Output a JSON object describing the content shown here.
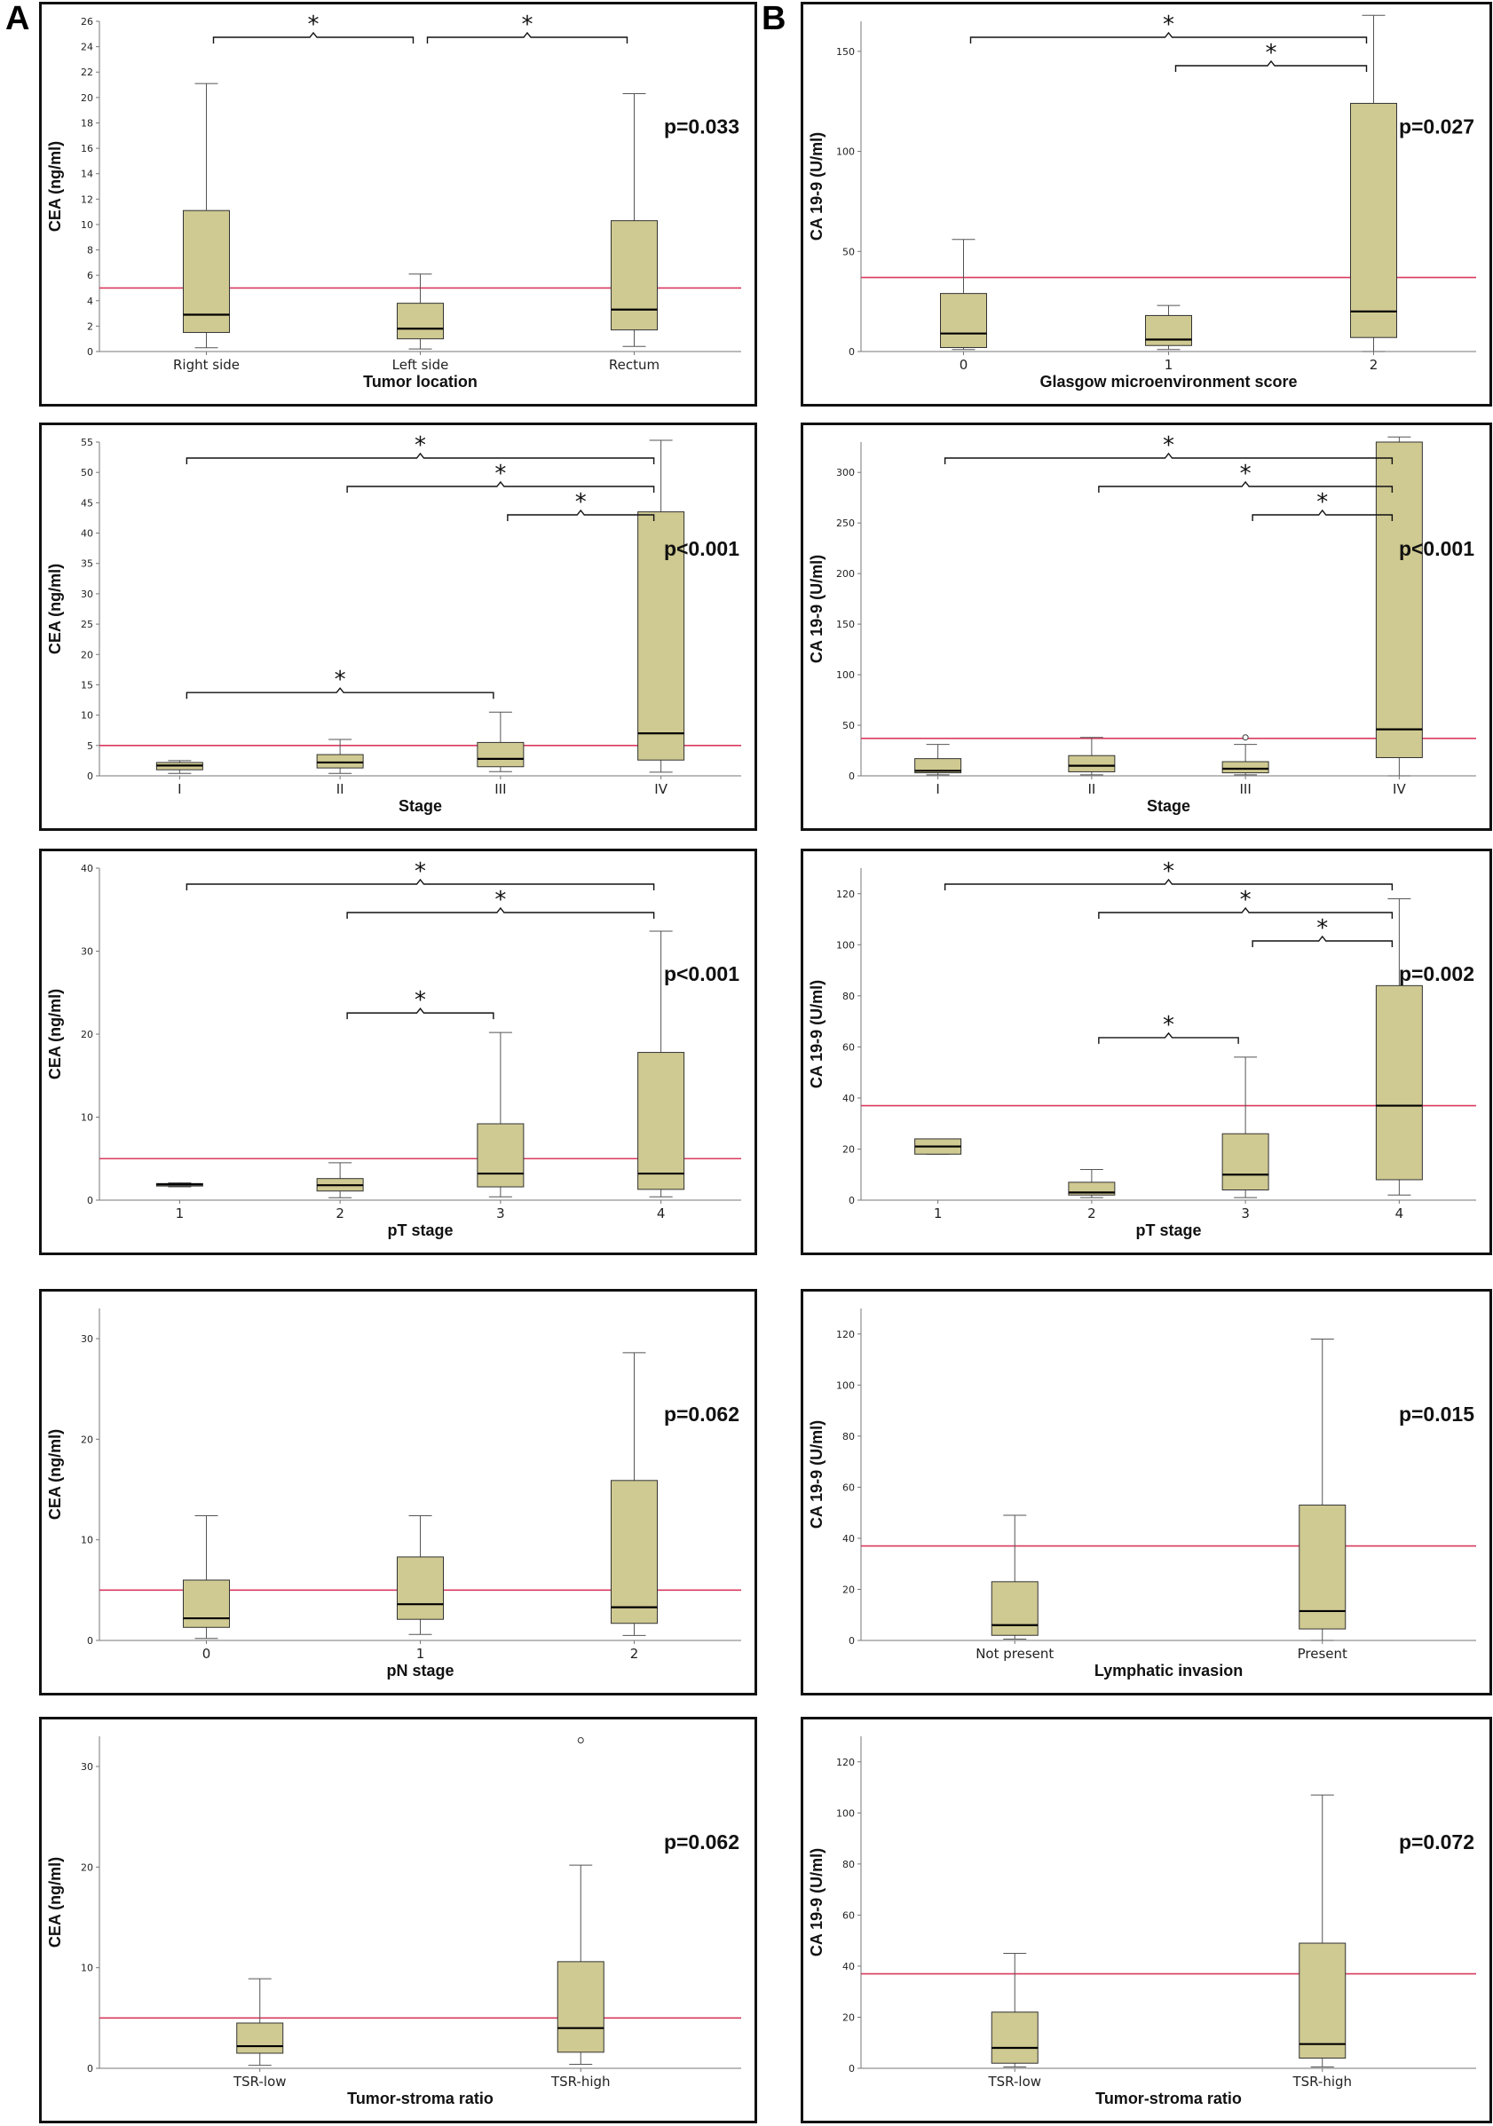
{
  "figure": {
    "label_a": "A",
    "label_b": "B"
  },
  "style": {
    "box_fill": "#cfc992",
    "ref_line": "#d93a5e",
    "frame": "#111111"
  },
  "chart_data": [
    {
      "panel": "A1",
      "type": "box",
      "ylabel": "CEA (ng/ml)",
      "xlabel": "Tumor location",
      "ylim": [
        0,
        26
      ],
      "yticks": [
        0,
        2,
        4,
        6,
        8,
        10,
        12,
        14,
        16,
        18,
        20,
        22,
        24,
        26
      ],
      "categories": [
        "Right side",
        "Left side",
        "Rectum"
      ],
      "boxes": [
        {
          "min": 0.3,
          "q1": 1.5,
          "median": 2.9,
          "q3": 11.1,
          "max": 21.1
        },
        {
          "min": 0.2,
          "q1": 1.0,
          "median": 1.8,
          "q3": 3.8,
          "max": 6.1
        },
        {
          "min": 0.4,
          "q1": 1.7,
          "median": 3.3,
          "q3": 10.3,
          "max": 20.3
        }
      ],
      "outliers": [],
      "reference_line": 5,
      "p_value": "p=0.033",
      "brackets": [
        {
          "from": 0,
          "to": 1,
          "label": "*",
          "level": 0
        },
        {
          "from": 1,
          "to": 2,
          "label": "*",
          "level": 0
        }
      ]
    },
    {
      "panel": "B1",
      "type": "box",
      "ylabel": "CA 19-9 (U/ml)",
      "xlabel": "Glasgow microenvironment score",
      "ylim": [
        0,
        165
      ],
      "yticks": [
        0,
        50,
        100,
        150
      ],
      "categories": [
        "0",
        "1",
        "2"
      ],
      "boxes": [
        {
          "min": 1,
          "q1": 2,
          "median": 9,
          "q3": 29,
          "max": 56
        },
        {
          "min": 1,
          "q1": 3,
          "median": 6,
          "q3": 18,
          "max": 23
        },
        {
          "min": 0,
          "q1": 7,
          "median": 20,
          "q3": 124,
          "max": 168
        }
      ],
      "outliers": [],
      "reference_line": 37,
      "p_value": "p=0.027",
      "brackets": [
        {
          "from": 0,
          "to": 2,
          "label": "*",
          "level": 1
        },
        {
          "from": 1,
          "to": 2,
          "label": "*",
          "level": 0
        }
      ]
    },
    {
      "panel": "A2",
      "type": "box",
      "ylabel": "CEA (ng/ml)",
      "xlabel": "Stage",
      "ylim": [
        0,
        55
      ],
      "yticks": [
        0,
        5,
        10,
        15,
        20,
        25,
        30,
        35,
        40,
        45,
        50,
        55
      ],
      "categories": [
        "I",
        "II",
        "III",
        "IV"
      ],
      "boxes": [
        {
          "min": 0.4,
          "q1": 1.0,
          "median": 1.7,
          "q3": 2.2,
          "max": 2.5
        },
        {
          "min": 0.4,
          "q1": 1.3,
          "median": 2.2,
          "q3": 3.5,
          "max": 6.0
        },
        {
          "min": 0.7,
          "q1": 1.5,
          "median": 2.8,
          "q3": 5.5,
          "max": 10.5
        },
        {
          "min": 0.6,
          "q1": 2.6,
          "median": 7.0,
          "q3": 43.5,
          "max": 55.3
        }
      ],
      "outliers": [],
      "reference_line": 5,
      "p_value": "p<0.001",
      "brackets": [
        {
          "from": 0,
          "to": 3,
          "label": "*",
          "level": 2
        },
        {
          "from": 1,
          "to": 3,
          "label": "*",
          "level": 1
        },
        {
          "from": 2,
          "to": 3,
          "label": "*",
          "level": 0
        },
        {
          "from": 0,
          "to": 2,
          "label": "*",
          "level": -2
        }
      ]
    },
    {
      "panel": "B2",
      "type": "box",
      "ylabel": "CA 19-9 (U/ml)",
      "xlabel": "Stage",
      "ylim": [
        0,
        330
      ],
      "yticks": [
        0,
        50,
        100,
        150,
        200,
        250,
        300
      ],
      "categories": [
        "I",
        "II",
        "III",
        "IV"
      ],
      "boxes": [
        {
          "min": 1,
          "q1": 3,
          "median": 5,
          "q3": 17,
          "max": 31
        },
        {
          "min": 1,
          "q1": 4,
          "median": 10,
          "q3": 20,
          "max": 38
        },
        {
          "min": 1,
          "q1": 3,
          "median": 7,
          "q3": 14,
          "max": 31
        },
        {
          "min": 0,
          "q1": 18,
          "median": 46,
          "q3": 330,
          "max": 335
        }
      ],
      "outliers": [
        {
          "category": 2,
          "value": 38
        }
      ],
      "reference_line": 37,
      "p_value": "p<0.001",
      "brackets": [
        {
          "from": 0,
          "to": 3,
          "label": "*",
          "level": 2
        },
        {
          "from": 1,
          "to": 3,
          "label": "*",
          "level": 1
        },
        {
          "from": 2,
          "to": 3,
          "label": "*",
          "level": 0
        }
      ]
    },
    {
      "panel": "A3",
      "type": "box",
      "ylabel": "CEA (ng/ml)",
      "xlabel": "pT stage",
      "ylim": [
        0,
        40
      ],
      "yticks": [
        0,
        10,
        20,
        30,
        40
      ],
      "categories": [
        "1",
        "2",
        "3",
        "4"
      ],
      "boxes": [
        {
          "min": 1.6,
          "q1": 1.7,
          "median": 1.9,
          "q3": 2.0,
          "max": 2.1
        },
        {
          "min": 0.3,
          "q1": 1.1,
          "median": 1.8,
          "q3": 2.6,
          "max": 4.5
        },
        {
          "min": 0.4,
          "q1": 1.6,
          "median": 3.2,
          "q3": 9.2,
          "max": 20.2
        },
        {
          "min": 0.4,
          "q1": 1.3,
          "median": 3.2,
          "q3": 17.8,
          "max": 32.4
        }
      ],
      "outliers": [],
      "reference_line": 5,
      "p_value": "p<0.001",
      "brackets": [
        {
          "from": 0,
          "to": 3,
          "label": "*",
          "level": 1
        },
        {
          "from": 1,
          "to": 3,
          "label": "*",
          "level": 0
        },
        {
          "from": 1,
          "to": 2,
          "label": "*",
          "level": -2
        }
      ]
    },
    {
      "panel": "B3",
      "type": "box",
      "ylabel": "CA 19-9 (U/ml)",
      "xlabel": "pT stage",
      "ylim": [
        0,
        130
      ],
      "yticks": [
        0,
        20,
        40,
        60,
        80,
        100,
        120
      ],
      "categories": [
        "1",
        "2",
        "3",
        "4"
      ],
      "boxes": [
        {
          "min": 18,
          "q1": 18,
          "median": 21,
          "q3": 24,
          "max": 24
        },
        {
          "min": 1,
          "q1": 2,
          "median": 3,
          "q3": 7,
          "max": 12
        },
        {
          "min": 1,
          "q1": 4,
          "median": 10,
          "q3": 26,
          "max": 56
        },
        {
          "min": 2,
          "q1": 8,
          "median": 37,
          "q3": 84,
          "max": 118
        }
      ],
      "outliers": [],
      "reference_line": 37,
      "p_value": "p=0.002",
      "brackets": [
        {
          "from": 0,
          "to": 3,
          "label": "*",
          "level": 2
        },
        {
          "from": 1,
          "to": 3,
          "label": "*",
          "level": 1
        },
        {
          "from": 2,
          "to": 3,
          "label": "*",
          "level": 0
        },
        {
          "from": 1,
          "to": 2,
          "label": "*",
          "level": -2
        }
      ]
    },
    {
      "panel": "A4",
      "type": "box",
      "ylabel": "CEA (ng/ml)",
      "xlabel": "pN stage",
      "ylim": [
        0,
        33
      ],
      "yticks": [
        0,
        10,
        20,
        30
      ],
      "categories": [
        "0",
        "1",
        "2"
      ],
      "boxes": [
        {
          "min": 0.2,
          "q1": 1.3,
          "median": 2.2,
          "q3": 6.0,
          "max": 12.4
        },
        {
          "min": 0.6,
          "q1": 2.1,
          "median": 3.6,
          "q3": 8.3,
          "max": 12.4
        },
        {
          "min": 0.5,
          "q1": 1.7,
          "median": 3.3,
          "q3": 15.9,
          "max": 28.6
        }
      ],
      "outliers": [],
      "reference_line": 5,
      "p_value": "p=0.062",
      "brackets": []
    },
    {
      "panel": "B4",
      "type": "box",
      "ylabel": "CA 19-9 (U/ml)",
      "xlabel": "Lymphatic invasion",
      "ylim": [
        0,
        130
      ],
      "yticks": [
        0,
        20,
        40,
        60,
        80,
        100,
        120
      ],
      "categories": [
        "Not present",
        "Present"
      ],
      "boxes": [
        {
          "min": 0.5,
          "q1": 2,
          "median": 6,
          "q3": 23,
          "max": 49
        },
        {
          "min": 0,
          "q1": 4.5,
          "median": 11.5,
          "q3": 53,
          "max": 118
        }
      ],
      "outliers": [],
      "reference_line": 37,
      "p_value": "p=0.015",
      "brackets": []
    },
    {
      "panel": "A5",
      "type": "box",
      "ylabel": "CEA (ng/ml)",
      "xlabel": "Tumor-stroma ratio",
      "ylim": [
        0,
        33
      ],
      "yticks": [
        0,
        10,
        20,
        30
      ],
      "categories": [
        "TSR-low",
        "TSR-high"
      ],
      "boxes": [
        {
          "min": 0.3,
          "q1": 1.5,
          "median": 2.2,
          "q3": 4.5,
          "max": 8.9
        },
        {
          "min": 0.4,
          "q1": 1.6,
          "median": 4.0,
          "q3": 10.6,
          "max": 20.2
        }
      ],
      "outliers": [
        {
          "category": 1,
          "value": 32.6
        }
      ],
      "reference_line": 5,
      "p_value": "p=0.062",
      "brackets": []
    },
    {
      "panel": "B5",
      "type": "box",
      "ylabel": "CA 19-9 (U/ml)",
      "xlabel": "Tumor-stroma ratio",
      "ylim": [
        0,
        130
      ],
      "yticks": [
        0,
        20,
        40,
        60,
        80,
        100,
        120
      ],
      "categories": [
        "TSR-low",
        "TSR-high"
      ],
      "boxes": [
        {
          "min": 0.5,
          "q1": 2,
          "median": 8,
          "q3": 22,
          "max": 45
        },
        {
          "min": 0.5,
          "q1": 4,
          "median": 9.5,
          "q3": 49,
          "max": 107
        }
      ],
      "outliers": [],
      "reference_line": 37,
      "p_value": "p=0.072",
      "brackets": []
    }
  ]
}
